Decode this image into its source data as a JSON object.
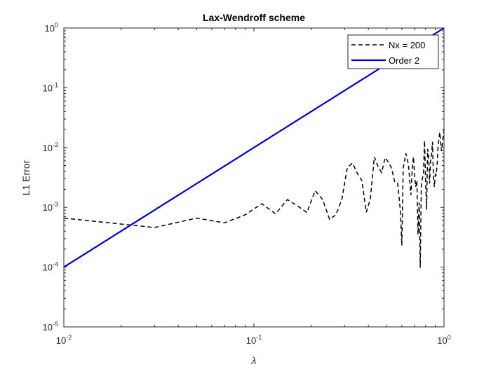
{
  "chart_data": {
    "type": "line",
    "title": "Lax-Wendroff scheme",
    "xlabel": "λ",
    "ylabel": "L1 Error",
    "xscale": "log",
    "yscale": "log",
    "xlim": [
      0.01,
      1
    ],
    "ylim": [
      1e-05,
      1
    ],
    "grid": false,
    "legend_position": "top-right",
    "x_ticks": [
      {
        "value": 0.01,
        "base": "10",
        "exp": "-2"
      },
      {
        "value": 0.1,
        "base": "10",
        "exp": "-1"
      },
      {
        "value": 1,
        "base": "10",
        "exp": "0"
      }
    ],
    "y_ticks": [
      {
        "value": 1e-05,
        "base": "10",
        "exp": "-5"
      },
      {
        "value": 0.0001,
        "base": "10",
        "exp": "-4"
      },
      {
        "value": 0.001,
        "base": "10",
        "exp": "-3"
      },
      {
        "value": 0.01,
        "base": "10",
        "exp": "-2"
      },
      {
        "value": 0.1,
        "base": "10",
        "exp": "-1"
      },
      {
        "value": 1,
        "base": "10",
        "exp": "0"
      }
    ],
    "series": [
      {
        "name": "Nx = 200",
        "color": "#000000",
        "style": "dashed",
        "points": [
          [
            0.01,
            0.00066
          ],
          [
            0.03,
            0.00046
          ],
          [
            0.05,
            0.00066
          ],
          [
            0.07,
            0.00055
          ],
          [
            0.09,
            0.00075
          ],
          [
            0.11,
            0.00115
          ],
          [
            0.13,
            0.00078
          ],
          [
            0.15,
            0.00135
          ],
          [
            0.17,
            0.00105
          ],
          [
            0.19,
            0.00082
          ],
          [
            0.21,
            0.0019
          ],
          [
            0.23,
            0.00135
          ],
          [
            0.25,
            0.00063
          ],
          [
            0.27,
            0.00075
          ],
          [
            0.29,
            0.00135
          ],
          [
            0.31,
            0.0046
          ],
          [
            0.33,
            0.0055
          ],
          [
            0.35,
            0.0037
          ],
          [
            0.37,
            0.0028
          ],
          [
            0.39,
            0.00083
          ],
          [
            0.41,
            0.0014
          ],
          [
            0.43,
            0.007
          ],
          [
            0.45,
            0.0048
          ],
          [
            0.47,
            0.0038
          ],
          [
            0.49,
            0.0068
          ],
          [
            0.51,
            0.0057
          ],
          [
            0.53,
            0.0045
          ],
          [
            0.55,
            0.0027
          ],
          [
            0.57,
            0.0026
          ],
          [
            0.59,
            0.00085
          ],
          [
            0.6,
            0.00023
          ],
          [
            0.61,
            0.0045
          ],
          [
            0.63,
            0.008
          ],
          [
            0.65,
            0.0052
          ],
          [
            0.67,
            0.0016
          ],
          [
            0.68,
            0.0041
          ],
          [
            0.69,
            0.007
          ],
          [
            0.7,
            0.0036
          ],
          [
            0.71,
            0.0022
          ],
          [
            0.72,
            0.0028
          ],
          [
            0.73,
            0.00035
          ],
          [
            0.74,
            0.0012
          ],
          [
            0.75,
            9.75e-05
          ],
          [
            0.76,
            0.0025
          ],
          [
            0.78,
            0.0037
          ],
          [
            0.79,
            0.013
          ],
          [
            0.8,
            0.0028
          ],
          [
            0.81,
            0.00092
          ],
          [
            0.82,
            0.0095
          ],
          [
            0.83,
            0.0075
          ],
          [
            0.84,
            0.0025
          ],
          [
            0.85,
            0.006
          ],
          [
            0.86,
            0.0075
          ],
          [
            0.87,
            0.0125
          ],
          [
            0.88,
            0.0032
          ],
          [
            0.89,
            0.0022
          ],
          [
            0.9,
            0.0036
          ],
          [
            0.91,
            0.0035
          ],
          [
            0.92,
            0.0052
          ],
          [
            0.93,
            0.0105
          ],
          [
            0.95,
            0.018
          ],
          [
            0.97,
            0.0087
          ],
          [
            1.0,
            0.02
          ]
        ]
      },
      {
        "name": "Order 2",
        "color": "#0000cc",
        "style": "solid",
        "points": [
          [
            0.01,
            0.0001
          ],
          [
            1,
            1
          ]
        ]
      }
    ]
  }
}
